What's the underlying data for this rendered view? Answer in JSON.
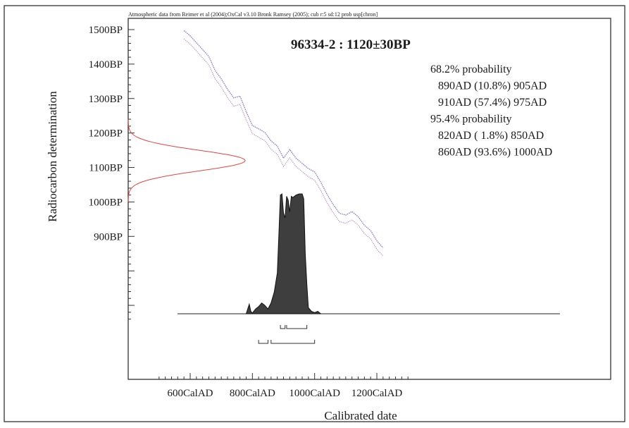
{
  "chart_data": {
    "type": "area",
    "title": "96334-2 : 1120±30BP",
    "credit": "Atmospheric data from Reimer et al (2004);OxCal v3.10 Bronk Ramsey (2005); cub r:5 sd:12 prob usp[chron]",
    "xlabel": "Calibrated date",
    "ylabel": "Radiocarbon determination",
    "xlim": [
      500,
      1300
    ],
    "ylim": [
      650,
      1500
    ],
    "x_ticks": [
      {
        "value": 600,
        "label": "600CalAD"
      },
      {
        "value": 800,
        "label": "800CalAD"
      },
      {
        "value": 1000,
        "label": "1000CalAD"
      },
      {
        "value": 1200,
        "label": "1200CalAD"
      }
    ],
    "y_ticks": [
      {
        "value": 1500,
        "label": "1500BP"
      },
      {
        "value": 1400,
        "label": "1400BP"
      },
      {
        "value": 1300,
        "label": "1300BP"
      },
      {
        "value": 1200,
        "label": "1200BP"
      },
      {
        "value": 1100,
        "label": "1100BP"
      },
      {
        "value": 1000,
        "label": "1000BP"
      },
      {
        "value": 900,
        "label": "900BP"
      }
    ],
    "probability_text": [
      "68.2% probability",
      "890AD (10.8%) 905AD",
      "910AD (57.4%) 975AD",
      "95.4% probability",
      "820AD ( 1.8%) 850AD",
      "860AD (93.6%) 1000AD"
    ],
    "radiocarbon": {
      "mean": 1120,
      "sd": 30
    },
    "calibration_curve": {
      "x": [
        580,
        600,
        620,
        640,
        660,
        680,
        700,
        720,
        740,
        760,
        780,
        800,
        820,
        840,
        860,
        880,
        900,
        920,
        940,
        960,
        980,
        1000,
        1020,
        1040,
        1060,
        1080,
        1100,
        1120,
        1140,
        1160,
        1180,
        1200,
        1220
      ],
      "y": [
        1485,
        1470,
        1450,
        1430,
        1410,
        1370,
        1345,
        1315,
        1290,
        1295,
        1250,
        1210,
        1200,
        1190,
        1165,
        1150,
        1115,
        1140,
        1115,
        1100,
        1085,
        1075,
        1045,
        1010,
        980,
        955,
        950,
        960,
        945,
        920,
        905,
        875,
        855
      ],
      "band": 12
    },
    "posterior": {
      "x": [
        780,
        785,
        790,
        795,
        800,
        810,
        820,
        830,
        840,
        850,
        860,
        870,
        880,
        885,
        890,
        895,
        900,
        905,
        910,
        915,
        920,
        925,
        930,
        940,
        950,
        960,
        965,
        970,
        975,
        980,
        990,
        1000,
        1010,
        1020
      ],
      "density": [
        0,
        0.04,
        0.08,
        0.02,
        0.005,
        0.04,
        0.06,
        0.09,
        0.07,
        0.04,
        0.09,
        0.18,
        0.34,
        0.66,
        0.99,
        1.0,
        0.84,
        0.8,
        0.98,
        0.95,
        0.85,
        0.98,
        0.97,
        0.99,
        1.0,
        1.0,
        0.96,
        0.5,
        0.25,
        0.05,
        0.02,
        0.01,
        0.02,
        0
      ],
      "peak_bp": 1015,
      "base_bp": 1015
    },
    "range_bars": {
      "sigma1": [
        [
          890,
          905
        ],
        [
          910,
          975
        ]
      ],
      "sigma2": [
        [
          820,
          850
        ],
        [
          860,
          1000
        ]
      ]
    }
  }
}
